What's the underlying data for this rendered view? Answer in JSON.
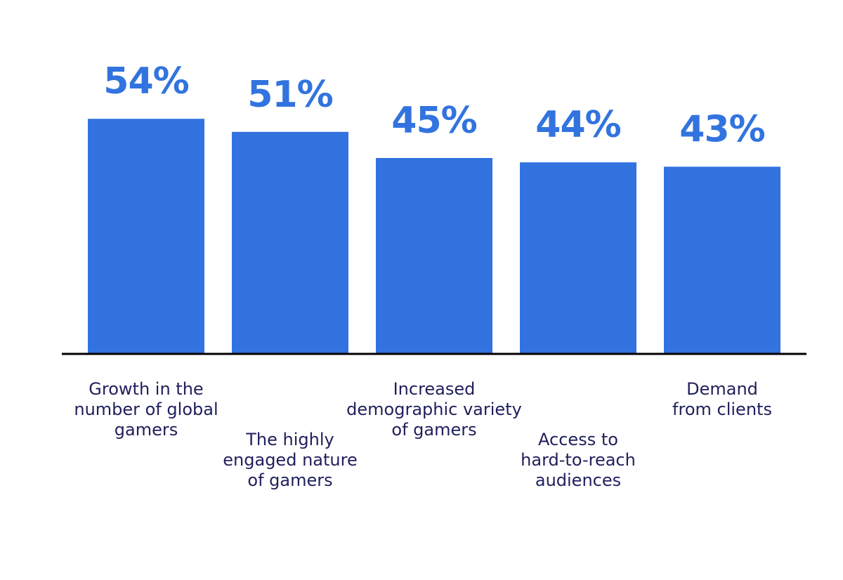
{
  "colors": {
    "bar": "#3273DF",
    "value_text": "#3273DF",
    "category_text": "#1F1F5C",
    "axis": "#000000",
    "background": "#FFFFFF"
  },
  "chart_data": {
    "type": "bar",
    "categories": [
      [
        "Growth in the",
        "number of global",
        "gamers"
      ],
      [
        "The highly",
        "engaged nature",
        "of gamers"
      ],
      [
        "Increased",
        "demographic variety",
        "of gamers"
      ],
      [
        "Access to",
        "hard-to-reach",
        "audiences"
      ],
      [
        "Demand",
        "from clients"
      ]
    ],
    "category_label_rows": [
      "upper",
      "lower",
      "upper",
      "lower",
      "upper"
    ],
    "values": [
      54,
      51,
      45,
      44,
      43
    ],
    "value_labels": [
      "54%",
      "51%",
      "45%",
      "44%",
      "43%"
    ],
    "title": "",
    "xlabel": "",
    "ylabel": "",
    "ylim": [
      0,
      60
    ],
    "grid": false,
    "legend": "none"
  }
}
